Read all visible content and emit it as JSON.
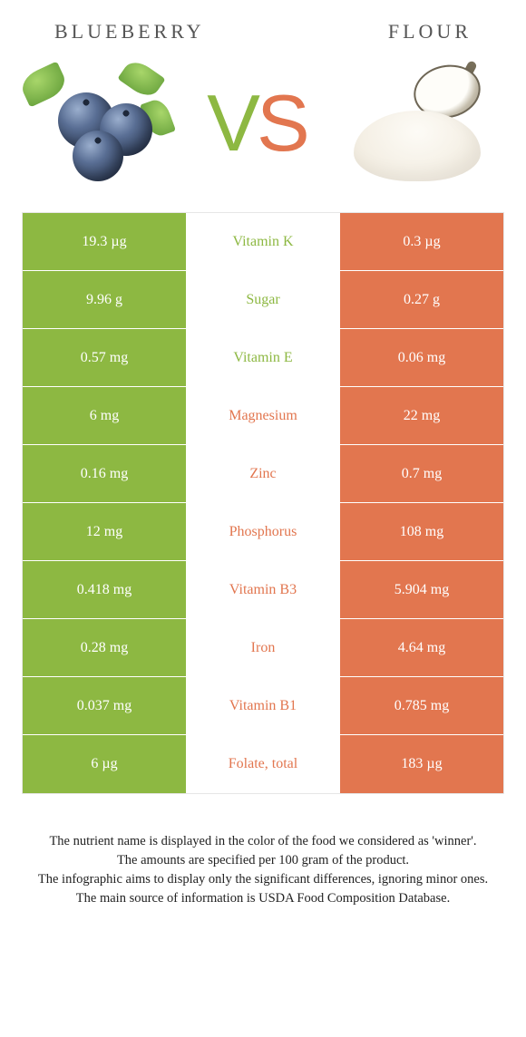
{
  "colors": {
    "left": "#8db842",
    "right": "#e2764f"
  },
  "header": {
    "left_title": "BLUEBERRY",
    "right_title": "FLOUR"
  },
  "vs": {
    "v": "V",
    "s": "S"
  },
  "rows": [
    {
      "left": "19.3 µg",
      "label": "Vitamin K",
      "right": "0.3 µg",
      "winner": "left"
    },
    {
      "left": "9.96 g",
      "label": "Sugar",
      "right": "0.27 g",
      "winner": "left"
    },
    {
      "left": "0.57 mg",
      "label": "Vitamin E",
      "right": "0.06 mg",
      "winner": "left"
    },
    {
      "left": "6 mg",
      "label": "Magnesium",
      "right": "22 mg",
      "winner": "right"
    },
    {
      "left": "0.16 mg",
      "label": "Zinc",
      "right": "0.7 mg",
      "winner": "right"
    },
    {
      "left": "12 mg",
      "label": "Phosphorus",
      "right": "108 mg",
      "winner": "right"
    },
    {
      "left": "0.418 mg",
      "label": "Vitamin B3",
      "right": "5.904 mg",
      "winner": "right"
    },
    {
      "left": "0.28 mg",
      "label": "Iron",
      "right": "4.64 mg",
      "winner": "right"
    },
    {
      "left": "0.037 mg",
      "label": "Vitamin B1",
      "right": "0.785 mg",
      "winner": "right"
    },
    {
      "left": "6 µg",
      "label": "Folate, total",
      "right": "183 µg",
      "winner": "right"
    }
  ],
  "footnote": {
    "line1": "The nutrient name is displayed in the color of the food we considered as 'winner'.",
    "line2": "The amounts are specified per 100 gram of the product.",
    "line3": "The infographic aims to display only the significant differences, ignoring minor ones.",
    "line4": "The main source of information is USDA Food Composition Database."
  }
}
